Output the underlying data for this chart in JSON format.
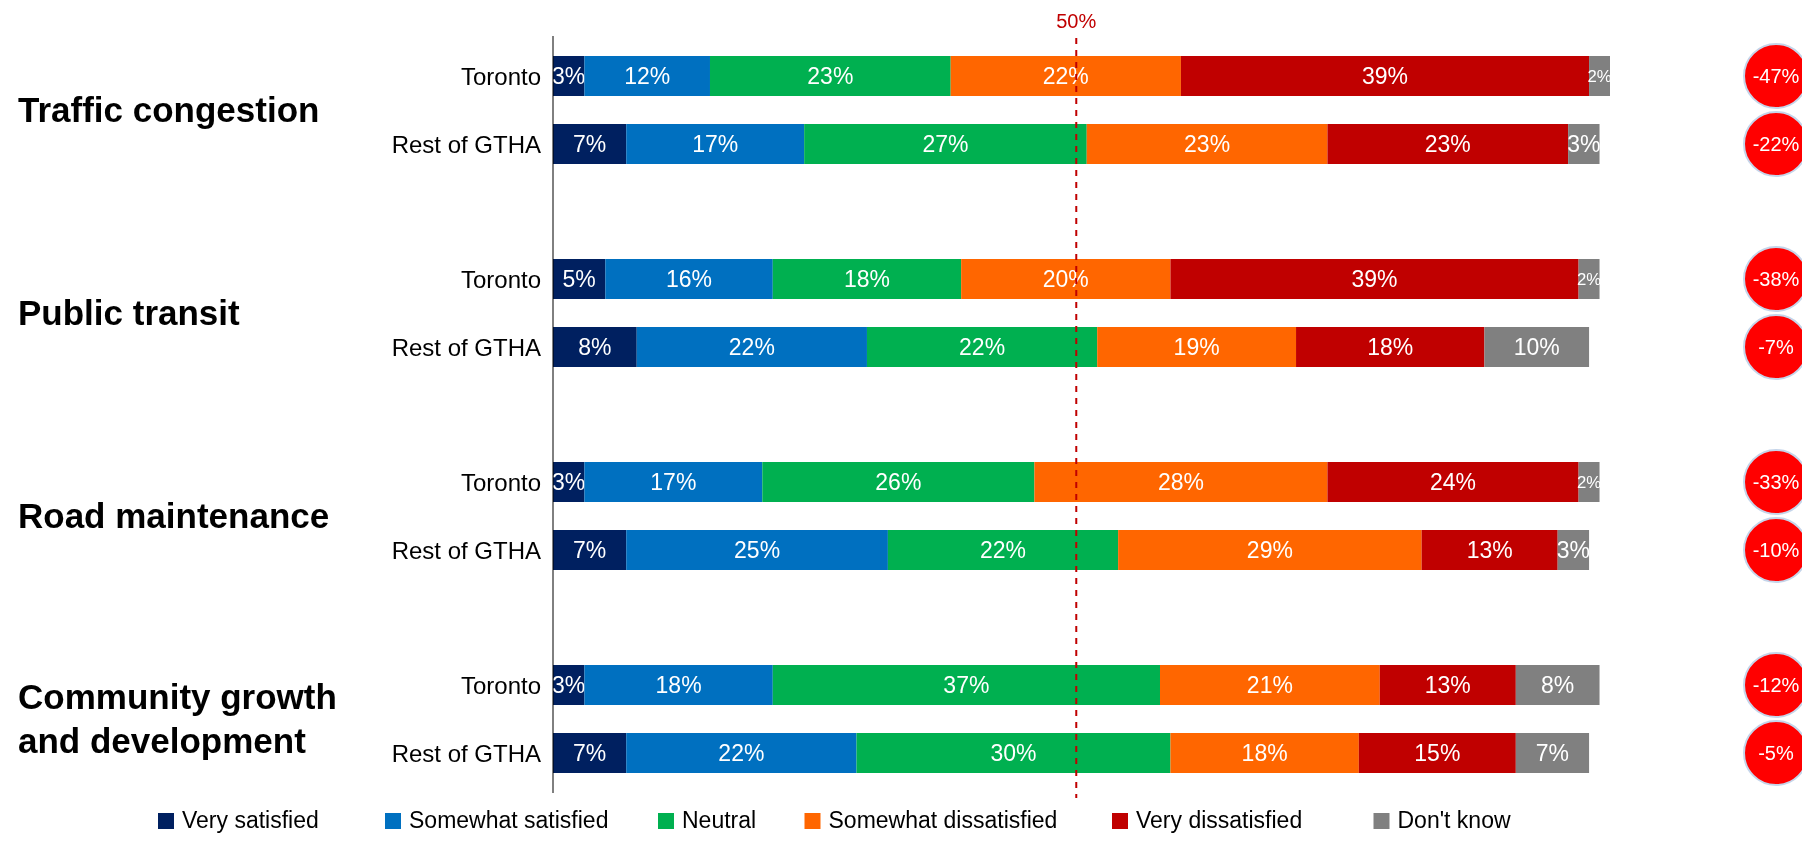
{
  "chart_data": {
    "type": "bar",
    "orientation": "horizontal",
    "stacked": true,
    "legend": "bottom",
    "categories": [
      "Toronto",
      "Rest of GTHA",
      "Toronto",
      "Rest of GTHA",
      "Toronto",
      "Rest of GTHA",
      "Toronto",
      "Rest of GTHA"
    ],
    "series": [
      {
        "name": "Very satisfied",
        "color": "#002060",
        "values": [
          3,
          7,
          5,
          8,
          3,
          7,
          3,
          7
        ],
        "value_labels": [
          "3%",
          "7%",
          "5%",
          "8%",
          "3%",
          "7%",
          "3%",
          "7%"
        ]
      },
      {
        "name": "Somewhat satisfied",
        "color": "#0070c0",
        "values": [
          12,
          17,
          16,
          22,
          17,
          25,
          18,
          22
        ],
        "value_labels": [
          "12%",
          "17%",
          "16%",
          "22%",
          "17%",
          "25%",
          "18%",
          "22%"
        ]
      },
      {
        "name": "Neutral",
        "color": "#00b050",
        "values": [
          23,
          27,
          18,
          22,
          26,
          22,
          37,
          30
        ],
        "value_labels": [
          "23%",
          "27%",
          "18%",
          "22%",
          "26%",
          "22%",
          "37%",
          "30%"
        ]
      },
      {
        "name": "Somewhat dissatisfied",
        "color": "#ff6600",
        "values": [
          22,
          23,
          20,
          19,
          28,
          29,
          21,
          18
        ],
        "value_labels": [
          "22%",
          "23%",
          "20%",
          "19%",
          "28%",
          "29%",
          "21%",
          "18%"
        ]
      },
      {
        "name": "Very dissatisfied",
        "color": "#c00000",
        "values": [
          39,
          23,
          39,
          18,
          24,
          13,
          13,
          15
        ],
        "value_labels": [
          "39%",
          "23%",
          "39%",
          "18%",
          "24%",
          "13%",
          "13%",
          "15%"
        ]
      },
      {
        "name": "Don't know",
        "color": "#808080",
        "values": [
          2,
          3,
          2,
          10,
          2,
          3,
          8,
          7
        ],
        "value_labels": [
          "2%",
          "3%",
          "2%",
          "10%",
          "2%",
          "3%",
          "8%",
          "7%"
        ]
      }
    ],
    "ref_lines": [
      {
        "axis": "x",
        "value": 50,
        "label": "50%",
        "color": "#c00000",
        "line_style": "dashed"
      }
    ],
    "annotations": [
      "Traffic congestion",
      "Public transit",
      "Road maintenance",
      "Community growth and development",
      "-47%",
      "-22%",
      "-38%",
      "-7%",
      "-33%",
      "-10%",
      "-12%",
      "-5%"
    ]
  }
}
